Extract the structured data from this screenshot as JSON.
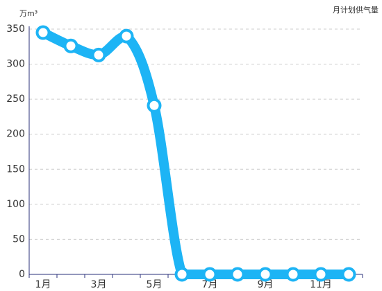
{
  "chart_data": {
    "type": "line",
    "y_label": "万m³",
    "categories": [
      "1月",
      null,
      "3月",
      null,
      "5月",
      null,
      "7月",
      null,
      "9月",
      null,
      "11月",
      null
    ],
    "series": [
      {
        "name": "月计划供气量",
        "color": "#1db4f5",
        "values": [
          345,
          326,
          313,
          340,
          241,
          0,
          0,
          0,
          0,
          0,
          0,
          0
        ]
      }
    ],
    "ylim": [
      0,
      350
    ],
    "yticks": [
      0,
      50,
      100,
      150,
      200,
      250,
      300,
      350
    ],
    "grid": true,
    "legend": "top-right"
  }
}
